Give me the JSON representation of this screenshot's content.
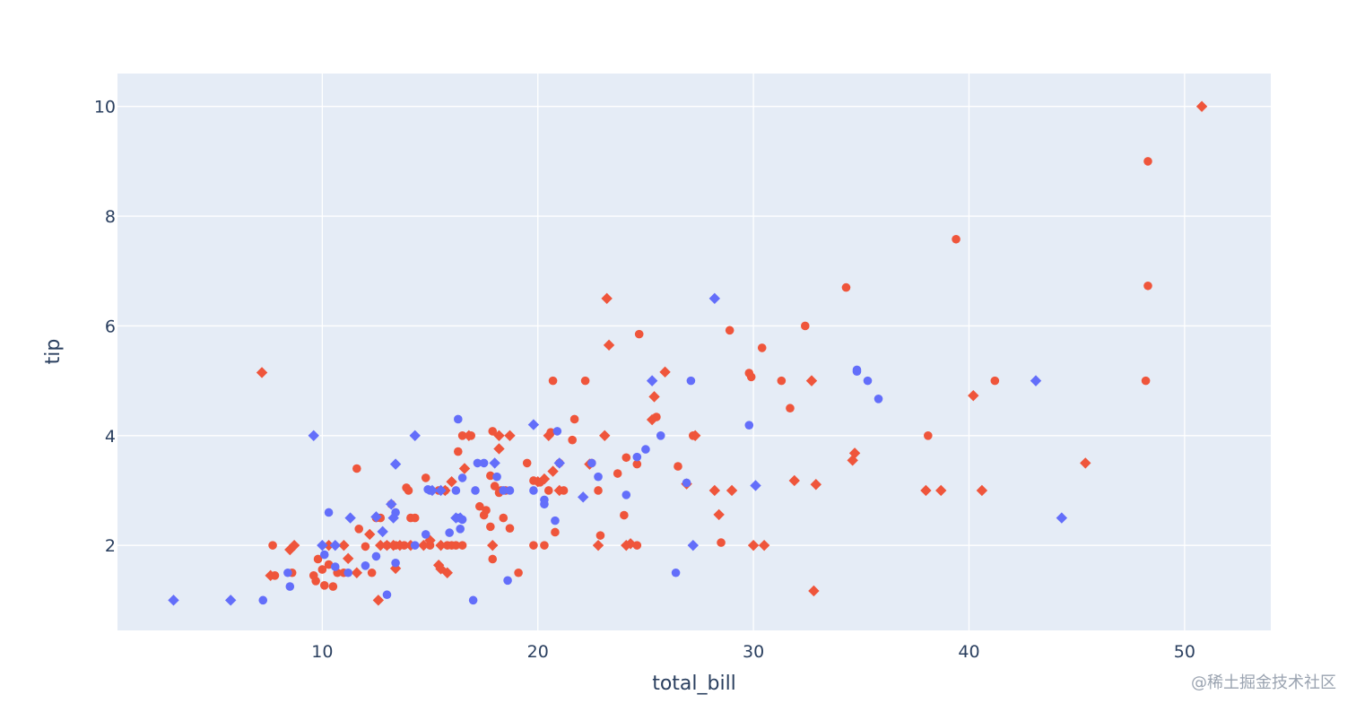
{
  "chart_data": {
    "type": "scatter",
    "xlabel": "total_bill",
    "ylabel": "tip",
    "xlim": [
      0.5,
      54
    ],
    "ylim": [
      0.45,
      10.6
    ],
    "x_ticks": [
      10,
      20,
      30,
      40,
      50
    ],
    "y_ticks": [
      2,
      4,
      6,
      8,
      10
    ],
    "grid": true,
    "legend": "none",
    "colors": {
      "series_red": "#ef553b",
      "series_blue": "#636efa",
      "plot_bg": "#e5ecf6",
      "grid": "#ffffff",
      "text": "#2a3f5f"
    },
    "series": [
      {
        "color": "#ef553b",
        "symbol": "circle",
        "points": [
          [
            7.7,
            2.0
          ],
          [
            7.8,
            1.45
          ],
          [
            8.6,
            1.5
          ],
          [
            9.6,
            1.45
          ],
          [
            9.7,
            1.35
          ],
          [
            9.8,
            1.75
          ],
          [
            10.0,
            1.56
          ],
          [
            10.1,
            1.27
          ],
          [
            10.3,
            1.65
          ],
          [
            10.5,
            1.25
          ],
          [
            10.7,
            1.5
          ],
          [
            11.0,
            1.5
          ],
          [
            11.6,
            3.4
          ],
          [
            11.7,
            2.3
          ],
          [
            12.0,
            1.98
          ],
          [
            12.3,
            1.5
          ],
          [
            12.5,
            2.5
          ],
          [
            12.7,
            2.5
          ],
          [
            13.0,
            2.0
          ],
          [
            13.2,
            2.75
          ],
          [
            13.4,
            2.0
          ],
          [
            13.8,
            2.0
          ],
          [
            13.9,
            3.05
          ],
          [
            14.0,
            3.0
          ],
          [
            14.1,
            2.5
          ],
          [
            14.3,
            2.5
          ],
          [
            14.8,
            3.23
          ],
          [
            15.0,
            2.0
          ],
          [
            15.4,
            3.0
          ],
          [
            15.7,
            3.0
          ],
          [
            15.8,
            2.0
          ],
          [
            16.0,
            2.0
          ],
          [
            16.2,
            2.0
          ],
          [
            16.3,
            3.71
          ],
          [
            16.5,
            2.0
          ],
          [
            16.5,
            4.0
          ],
          [
            16.9,
            4.0
          ],
          [
            17.3,
            2.71
          ],
          [
            17.5,
            2.55
          ],
          [
            17.6,
            2.64
          ],
          [
            17.8,
            3.27
          ],
          [
            17.8,
            2.34
          ],
          [
            17.9,
            1.75
          ],
          [
            17.9,
            4.08
          ],
          [
            18.0,
            3.08
          ],
          [
            18.2,
            2.96
          ],
          [
            18.3,
            3.0
          ],
          [
            18.4,
            2.5
          ],
          [
            18.5,
            3.0
          ],
          [
            18.7,
            2.31
          ],
          [
            19.1,
            1.5
          ],
          [
            19.5,
            3.5
          ],
          [
            19.8,
            2.0
          ],
          [
            19.8,
            3.18
          ],
          [
            20.1,
            3.15
          ],
          [
            20.3,
            2.0
          ],
          [
            20.5,
            3.0
          ],
          [
            20.6,
            4.06
          ],
          [
            20.7,
            5.0
          ],
          [
            20.8,
            2.24
          ],
          [
            21.0,
            3.5
          ],
          [
            21.2,
            3.0
          ],
          [
            21.6,
            3.92
          ],
          [
            21.7,
            4.3
          ],
          [
            22.2,
            5.0
          ],
          [
            22.5,
            3.5
          ],
          [
            22.8,
            3.0
          ],
          [
            22.9,
            2.18
          ],
          [
            23.7,
            3.31
          ],
          [
            24.0,
            2.55
          ],
          [
            24.1,
            3.6
          ],
          [
            24.6,
            2.0
          ],
          [
            24.6,
            3.48
          ],
          [
            24.7,
            5.85
          ],
          [
            25.5,
            4.34
          ],
          [
            26.5,
            3.44
          ],
          [
            27.2,
            4.0
          ],
          [
            28.5,
            2.05
          ],
          [
            28.9,
            5.92
          ],
          [
            29.8,
            5.14
          ],
          [
            29.9,
            5.07
          ],
          [
            30.4,
            5.6
          ],
          [
            31.3,
            5.0
          ],
          [
            31.7,
            4.5
          ],
          [
            32.4,
            6.0
          ],
          [
            34.3,
            6.7
          ],
          [
            38.1,
            4.0
          ],
          [
            39.4,
            7.58
          ],
          [
            41.2,
            5.0
          ],
          [
            48.2,
            5.0
          ],
          [
            48.3,
            6.73
          ],
          [
            48.3,
            9.0
          ]
        ]
      },
      {
        "color": "#ef553b",
        "symbol": "diamond",
        "points": [
          [
            7.2,
            5.15
          ],
          [
            7.6,
            1.45
          ],
          [
            8.5,
            1.92
          ],
          [
            8.7,
            2.0
          ],
          [
            10.3,
            2.0
          ],
          [
            11.0,
            2.0
          ],
          [
            11.2,
            1.76
          ],
          [
            11.6,
            1.5
          ],
          [
            12.2,
            2.2
          ],
          [
            12.6,
            1.0
          ],
          [
            12.7,
            2.0
          ],
          [
            13.0,
            2.0
          ],
          [
            13.3,
            2.0
          ],
          [
            13.4,
            1.58
          ],
          [
            13.6,
            2.0
          ],
          [
            14.1,
            2.0
          ],
          [
            14.7,
            2.0
          ],
          [
            15.0,
            2.09
          ],
          [
            15.4,
            1.64
          ],
          [
            15.5,
            1.57
          ],
          [
            15.5,
            2.0
          ],
          [
            15.7,
            3.0
          ],
          [
            15.8,
            1.5
          ],
          [
            16.0,
            3.16
          ],
          [
            16.6,
            3.4
          ],
          [
            16.8,
            4.0
          ],
          [
            17.9,
            2.0
          ],
          [
            18.2,
            3.76
          ],
          [
            18.2,
            4.0
          ],
          [
            18.7,
            4.0
          ],
          [
            20.0,
            3.16
          ],
          [
            20.3,
            3.21
          ],
          [
            20.5,
            4.0
          ],
          [
            20.7,
            3.35
          ],
          [
            21.0,
            3.0
          ],
          [
            22.4,
            3.48
          ],
          [
            22.8,
            2.0
          ],
          [
            23.1,
            4.0
          ],
          [
            23.2,
            6.5
          ],
          [
            23.3,
            5.65
          ],
          [
            24.1,
            2.0
          ],
          [
            24.3,
            2.03
          ],
          [
            25.3,
            4.29
          ],
          [
            25.4,
            4.71
          ],
          [
            25.9,
            5.16
          ],
          [
            26.9,
            3.12
          ],
          [
            27.3,
            4.0
          ],
          [
            28.2,
            3.0
          ],
          [
            28.4,
            2.56
          ],
          [
            29.0,
            3.0
          ],
          [
            30.0,
            2.0
          ],
          [
            30.5,
            2.0
          ],
          [
            31.9,
            3.18
          ],
          [
            32.7,
            5.0
          ],
          [
            32.8,
            1.17
          ],
          [
            32.9,
            3.11
          ],
          [
            34.6,
            3.55
          ],
          [
            34.7,
            3.68
          ],
          [
            38.0,
            3.0
          ],
          [
            38.7,
            3.0
          ],
          [
            40.2,
            4.73
          ],
          [
            40.6,
            3.0
          ],
          [
            45.4,
            3.5
          ],
          [
            50.8,
            10.0
          ]
        ]
      },
      {
        "color": "#636efa",
        "symbol": "circle",
        "points": [
          [
            7.25,
            1.0
          ],
          [
            8.4,
            1.5
          ],
          [
            8.5,
            1.25
          ],
          [
            10.1,
            1.83
          ],
          [
            10.3,
            2.6
          ],
          [
            10.6,
            1.61
          ],
          [
            11.2,
            1.5
          ],
          [
            12.0,
            1.63
          ],
          [
            12.5,
            1.8
          ],
          [
            13.0,
            1.1
          ],
          [
            13.4,
            2.6
          ],
          [
            13.4,
            1.68
          ],
          [
            14.3,
            2.0
          ],
          [
            14.8,
            2.2
          ],
          [
            14.9,
            3.02
          ],
          [
            15.0,
            3.0
          ],
          [
            15.9,
            2.23
          ],
          [
            16.2,
            3.0
          ],
          [
            16.3,
            2.5
          ],
          [
            16.3,
            4.3
          ],
          [
            16.4,
            2.3
          ],
          [
            16.5,
            2.47
          ],
          [
            16.5,
            3.23
          ],
          [
            17.0,
            1.0
          ],
          [
            17.1,
            3.0
          ],
          [
            17.2,
            3.5
          ],
          [
            17.5,
            3.5
          ],
          [
            18.1,
            3.25
          ],
          [
            18.4,
            3.0
          ],
          [
            18.6,
            1.36
          ],
          [
            18.7,
            3.0
          ],
          [
            19.8,
            3.0
          ],
          [
            20.3,
            2.83
          ],
          [
            20.3,
            2.75
          ],
          [
            20.8,
            2.45
          ],
          [
            20.9,
            4.08
          ],
          [
            22.5,
            3.5
          ],
          [
            22.8,
            3.25
          ],
          [
            24.1,
            2.92
          ],
          [
            24.6,
            3.61
          ],
          [
            25.0,
            3.75
          ],
          [
            25.7,
            4.0
          ],
          [
            26.4,
            1.5
          ],
          [
            26.9,
            3.14
          ],
          [
            27.1,
            5.0
          ],
          [
            29.8,
            4.19
          ],
          [
            34.8,
            5.2
          ],
          [
            34.8,
            5.17
          ],
          [
            35.3,
            5.0
          ],
          [
            35.8,
            4.67
          ]
        ]
      },
      {
        "color": "#636efa",
        "symbol": "diamond",
        "points": [
          [
            3.1,
            1.0
          ],
          [
            5.75,
            1.0
          ],
          [
            9.6,
            4.0
          ],
          [
            10.0,
            2.0
          ],
          [
            10.6,
            2.0
          ],
          [
            11.3,
            2.5
          ],
          [
            12.5,
            2.52
          ],
          [
            12.8,
            2.25
          ],
          [
            13.2,
            2.75
          ],
          [
            13.3,
            2.5
          ],
          [
            13.4,
            3.48
          ],
          [
            14.3,
            4.0
          ],
          [
            15.1,
            3.0
          ],
          [
            15.5,
            3.0
          ],
          [
            16.2,
            2.5
          ],
          [
            16.4,
            2.5
          ],
          [
            18.0,
            3.5
          ],
          [
            19.8,
            4.2
          ],
          [
            21.0,
            3.5
          ],
          [
            22.1,
            2.88
          ],
          [
            25.3,
            5.0
          ],
          [
            27.2,
            2.0
          ],
          [
            28.2,
            6.5
          ],
          [
            30.1,
            3.09
          ],
          [
            43.1,
            5.0
          ],
          [
            44.3,
            2.5
          ]
        ]
      }
    ]
  },
  "watermark": "@稀土掘金技术社区"
}
